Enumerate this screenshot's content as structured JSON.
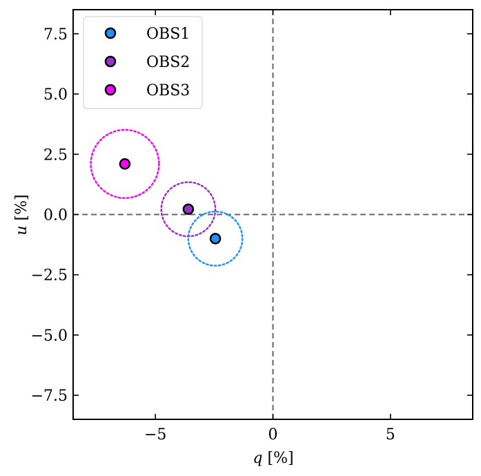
{
  "chart_data": {
    "type": "scatter",
    "title": "",
    "xlabel_var": "q",
    "xlabel_unit": " [%]",
    "ylabel_var": "u",
    "ylabel_unit": " [%]",
    "xlim": [
      -8.5,
      8.5
    ],
    "ylim": [
      -8.5,
      8.5
    ],
    "xticks": [
      -5,
      0,
      5
    ],
    "xtick_labels": [
      "−5",
      "0",
      "5"
    ],
    "yticks": [
      -7.5,
      -5.0,
      -2.5,
      0.0,
      2.5,
      5.0,
      7.5
    ],
    "ytick_labels": [
      "−7.5",
      "−5.0",
      "−2.5",
      "0.0",
      "2.5",
      "5.0",
      "7.5"
    ],
    "grid": false,
    "reference_lines": {
      "x": 0,
      "y": 0,
      "style": "dashed",
      "color": "#666666"
    },
    "legend_position": "upper-left",
    "series": [
      {
        "name": "OBS1",
        "color": "#1e90ff",
        "x": -2.45,
        "y": -1.0,
        "error_radius": 1.15
      },
      {
        "name": "OBS2",
        "color": "#9932cc",
        "x": -3.6,
        "y": 0.22,
        "error_radius": 1.15
      },
      {
        "name": "OBS3",
        "color": "#ff00ff",
        "x": -6.3,
        "y": 2.1,
        "error_radius": 1.45
      }
    ]
  }
}
